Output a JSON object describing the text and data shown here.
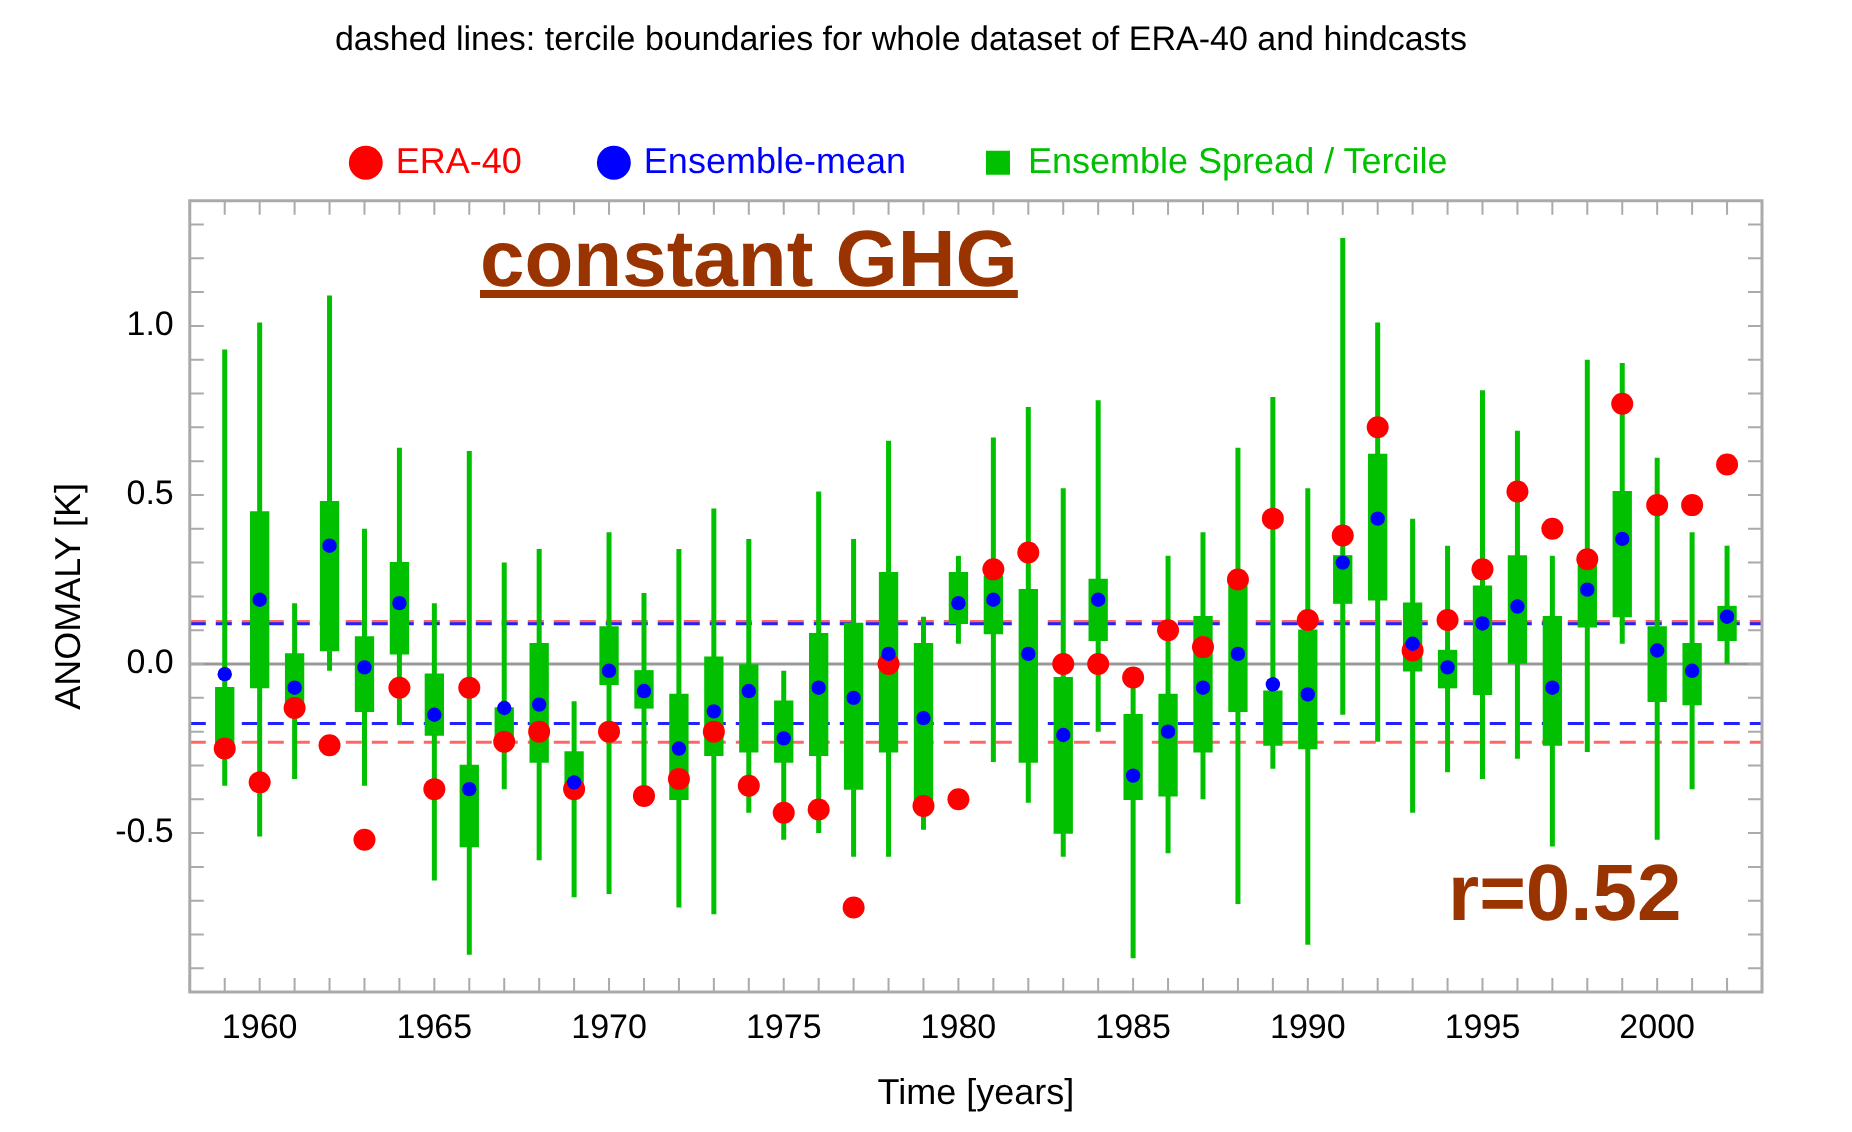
{
  "chart_data": {
    "type": "scatter",
    "title": "dashed lines: tercile boundaries for whole dataset of ERA-40 and hindcasts",
    "xlabel": "Time [years]",
    "ylabel": "ANOMALY [K]",
    "annotations": [
      "constant GHG",
      "r=0.52"
    ],
    "x": [
      1959,
      1960,
      1961,
      1962,
      1963,
      1964,
      1965,
      1966,
      1967,
      1968,
      1969,
      1970,
      1971,
      1972,
      1973,
      1974,
      1975,
      1976,
      1977,
      1978,
      1979,
      1980,
      1981,
      1982,
      1983,
      1984,
      1985,
      1986,
      1987,
      1988,
      1989,
      1990,
      1991,
      1992,
      1993,
      1994,
      1995,
      1996,
      1997,
      1998,
      1999,
      2000,
      2001,
      2002
    ],
    "series": [
      {
        "name": "Ensemble Spread / Tercile",
        "type": "bar",
        "color": "#00c000",
        "base": [
          -0.24,
          -0.07,
          -0.14,
          0.04,
          -0.14,
          0.03,
          -0.21,
          -0.54,
          -0.22,
          -0.29,
          -0.36,
          -0.06,
          -0.13,
          -0.4,
          -0.27,
          -0.26,
          -0.29,
          -0.27,
          -0.37,
          -0.26,
          -0.43,
          0.12,
          0.09,
          -0.29,
          -0.5,
          0.07,
          -0.4,
          -0.39,
          -0.26,
          -0.14,
          -0.24,
          -0.25,
          0.18,
          0.19,
          -0.02,
          -0.07,
          -0.09,
          0.0,
          -0.24,
          0.11,
          0.14,
          -0.11,
          -0.12,
          0.07
        ],
        "values": [
          0.17,
          0.52,
          0.17,
          0.44,
          0.22,
          0.27,
          0.18,
          0.24,
          0.09,
          0.35,
          0.1,
          0.17,
          0.11,
          0.31,
          0.29,
          0.26,
          0.18,
          0.36,
          0.49,
          0.53,
          0.49,
          0.15,
          0.17,
          0.51,
          0.46,
          0.18,
          0.25,
          0.3,
          0.4,
          0.37,
          0.16,
          0.35,
          0.14,
          0.43,
          0.2,
          0.11,
          0.32,
          0.32,
          0.38,
          0.18,
          0.37,
          0.22,
          0.18,
          0.1
        ],
        "errors": [
          [
            -0.36,
            0.93
          ],
          [
            -0.51,
            1.01
          ],
          [
            -0.34,
            0.18
          ],
          [
            -0.02,
            1.09
          ],
          [
            -0.36,
            0.4
          ],
          [
            -0.18,
            0.64
          ],
          [
            -0.64,
            0.18
          ],
          [
            -0.86,
            0.63
          ],
          [
            -0.37,
            0.3
          ],
          [
            -0.58,
            0.34
          ],
          [
            -0.69,
            -0.11
          ],
          [
            -0.68,
            0.39
          ],
          [
            -0.36,
            0.21
          ],
          [
            -0.72,
            0.34
          ],
          [
            -0.74,
            0.46
          ],
          [
            -0.44,
            0.37
          ],
          [
            -0.52,
            -0.02
          ],
          [
            -0.5,
            0.51
          ],
          [
            -0.57,
            0.37
          ],
          [
            -0.57,
            0.66
          ],
          [
            -0.49,
            0.14
          ],
          [
            0.06,
            0.32
          ],
          [
            -0.29,
            0.67
          ],
          [
            -0.41,
            0.76
          ],
          [
            -0.57,
            0.52
          ],
          [
            -0.2,
            0.78
          ],
          [
            -0.87,
            -0.07
          ],
          [
            -0.56,
            0.32
          ],
          [
            -0.4,
            0.39
          ],
          [
            -0.71,
            0.64
          ],
          [
            -0.31,
            0.79
          ],
          [
            -0.83,
            0.52
          ],
          [
            -0.15,
            1.26
          ],
          [
            -0.23,
            1.01
          ],
          [
            -0.44,
            0.43
          ],
          [
            -0.32,
            0.35
          ],
          [
            -0.34,
            0.81
          ],
          [
            -0.28,
            0.69
          ],
          [
            -0.54,
            0.32
          ],
          [
            -0.26,
            0.9
          ],
          [
            0.06,
            0.89
          ],
          [
            -0.52,
            0.61
          ],
          [
            -0.37,
            0.39
          ],
          [
            0.0,
            0.35
          ]
        ]
      },
      {
        "name": "ERA-40",
        "color": "#ff0000",
        "values": [
          -0.25,
          -0.35,
          -0.13,
          -0.24,
          -0.52,
          -0.07,
          -0.37,
          -0.07,
          -0.23,
          -0.2,
          -0.37,
          -0.2,
          -0.39,
          -0.34,
          -0.2,
          -0.36,
          -0.44,
          -0.43,
          -0.72,
          0.0,
          -0.42,
          -0.4,
          0.28,
          0.33,
          0.0,
          0.0,
          -0.04,
          0.1,
          0.05,
          0.25,
          0.43,
          0.13,
          0.38,
          0.7,
          0.04,
          0.13,
          0.28,
          0.51,
          0.4,
          0.31,
          0.77,
          0.47,
          0.47,
          0.59
        ]
      },
      {
        "name": "Ensemble-mean",
        "color": "#0000ff",
        "values": [
          -0.03,
          0.19,
          -0.07,
          0.35,
          -0.01,
          0.18,
          -0.15,
          -0.37,
          -0.13,
          -0.12,
          -0.35,
          -0.02,
          -0.08,
          -0.25,
          -0.14,
          -0.08,
          -0.22,
          -0.07,
          -0.1,
          0.03,
          -0.16,
          0.18,
          0.19,
          0.03,
          -0.21,
          0.19,
          -0.33,
          -0.2,
          -0.07,
          0.03,
          -0.06,
          -0.09,
          0.3,
          0.43,
          0.06,
          -0.01,
          0.12,
          0.17,
          -0.07,
          0.22,
          0.37,
          0.04,
          -0.02,
          0.14
        ]
      }
    ],
    "marker": "circle",
    "legend": "top",
    "grid": false,
    "xlim": [
      1958,
      2003
    ],
    "xticks": [
      {
        "value": 1958,
        "label": null
      },
      {
        "value": 1959,
        "label": null
      },
      1960,
      {
        "value": 1961,
        "label": null
      },
      {
        "value": 1962,
        "label": null
      },
      {
        "value": 1963,
        "label": null
      },
      {
        "value": 1964,
        "label": null
      },
      1965,
      {
        "value": 1966,
        "label": null
      },
      {
        "value": 1967,
        "label": null
      },
      {
        "value": 1968,
        "label": null
      },
      {
        "value": 1969,
        "label": null
      },
      1970,
      {
        "value": 1971,
        "label": null
      },
      {
        "value": 1972,
        "label": null
      },
      {
        "value": 1973,
        "label": null
      },
      {
        "value": 1974,
        "label": null
      },
      1975,
      {
        "value": 1976,
        "label": null
      },
      {
        "value": 1977,
        "label": null
      },
      {
        "value": 1978,
        "label": null
      },
      {
        "value": 1979,
        "label": null
      },
      1980,
      {
        "value": 1981,
        "label": null
      },
      {
        "value": 1982,
        "label": null
      },
      {
        "value": 1983,
        "label": null
      },
      {
        "value": 1984,
        "label": null
      },
      1985,
      {
        "value": 1986,
        "label": null
      },
      {
        "value": 1987,
        "label": null
      },
      {
        "value": 1988,
        "label": null
      },
      {
        "value": 1989,
        "label": null
      },
      1990,
      {
        "value": 1991,
        "label": null
      },
      {
        "value": 1992,
        "label": null
      },
      {
        "value": 1993,
        "label": null
      },
      {
        "value": 1994,
        "label": null
      },
      1995,
      {
        "value": 1996,
        "label": null
      },
      {
        "value": 1997,
        "label": null
      },
      {
        "value": 1998,
        "label": null
      },
      {
        "value": 1999,
        "label": null
      },
      2000,
      {
        "value": 2001,
        "label": null
      },
      {
        "value": 2002,
        "label": null
      }
    ],
    "ylim": [
      -0.97,
      1.37
    ],
    "yticks": [
      {
        "value": -0.9,
        "label": null
      },
      {
        "value": -0.8,
        "label": null
      },
      {
        "value": -0.7,
        "label": null
      },
      {
        "value": -0.6,
        "label": null
      },
      {
        "value": -0.5,
        "label": "-0.5"
      },
      {
        "value": -0.4,
        "label": null
      },
      {
        "value": -0.3,
        "label": null
      },
      {
        "value": -0.2,
        "label": null
      },
      {
        "value": -0.1,
        "label": null
      },
      {
        "value": 0,
        "label": "0.0"
      },
      {
        "value": 0.1,
        "label": null
      },
      {
        "value": 0.2,
        "label": null
      },
      {
        "value": 0.3,
        "label": null
      },
      {
        "value": 0.4,
        "label": null
      },
      {
        "value": 0.5,
        "label": "0.5"
      },
      {
        "value": 0.6,
        "label": null
      },
      {
        "value": 0.7,
        "label": null
      },
      {
        "value": 0.8,
        "label": null
      },
      {
        "value": 0.9,
        "label": null
      },
      {
        "value": 1.0,
        "label": "1.0"
      },
      {
        "value": 1.1,
        "label": null
      },
      {
        "value": 1.2,
        "label": null
      },
      {
        "value": 1.3,
        "label": null
      }
    ],
    "ref_lines": [
      {
        "axis": "y",
        "value": 0,
        "color": "#999999",
        "line_style": "solid"
      },
      {
        "axis": "y",
        "value": 0.126,
        "color": "#ff6666",
        "line_style": "dashed"
      },
      {
        "axis": "y",
        "value": -0.231,
        "color": "#ff6666",
        "line_style": "dashed"
      },
      {
        "axis": "y",
        "value": 0.119,
        "color": "#2222ff",
        "line_style": "dashed"
      },
      {
        "axis": "y",
        "value": -0.176,
        "color": "#2222ff",
        "line_style": "dashed"
      }
    ]
  }
}
